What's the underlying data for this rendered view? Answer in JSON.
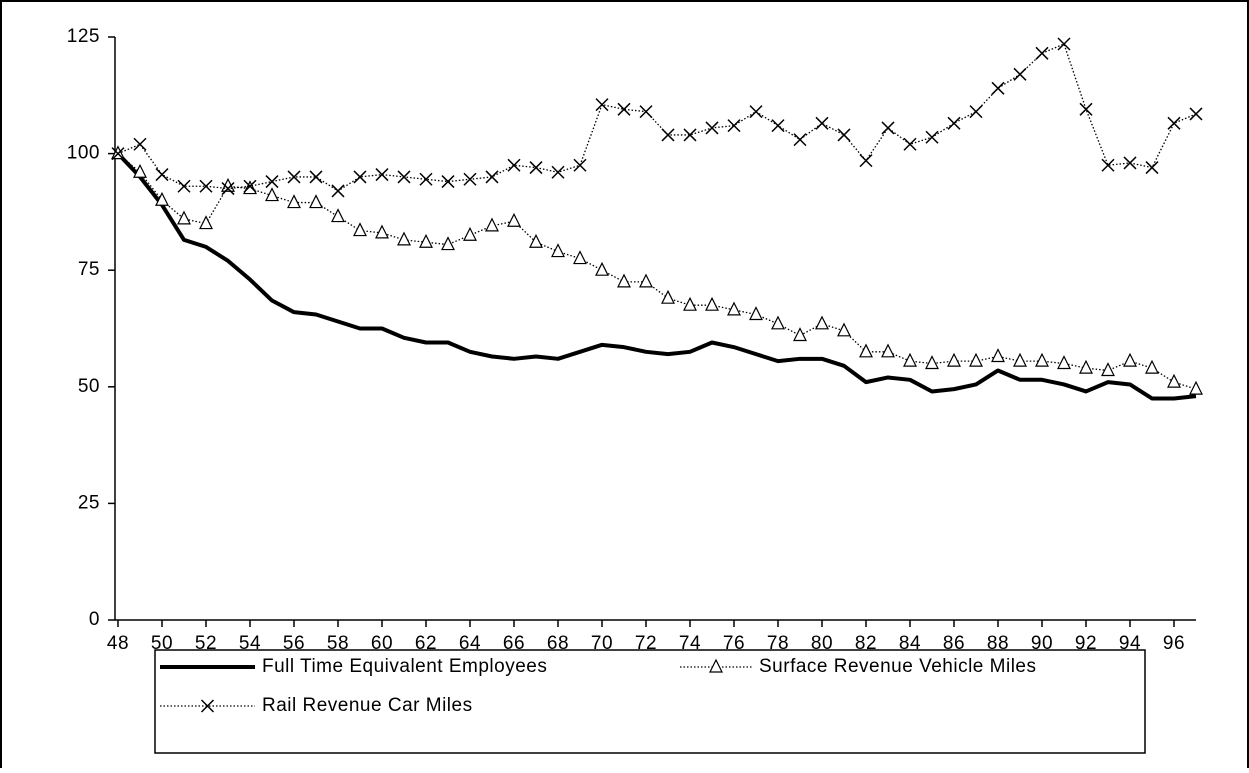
{
  "chart_data": {
    "type": "line",
    "x": [
      48,
      49,
      50,
      51,
      52,
      53,
      54,
      55,
      56,
      57,
      58,
      59,
      60,
      61,
      62,
      63,
      64,
      65,
      66,
      67,
      68,
      69,
      70,
      71,
      72,
      73,
      74,
      75,
      76,
      77,
      78,
      79,
      80,
      81,
      82,
      83,
      84,
      85,
      86,
      87,
      88,
      89,
      90,
      91,
      92,
      93,
      94,
      95,
      96,
      97
    ],
    "series": [
      {
        "name": "Full Time Equivalent Employees",
        "color": "#000000",
        "line_style": "solid",
        "marker": "none",
        "values": [
          100,
          95,
          89,
          81.5,
          80,
          77,
          73,
          68.5,
          66,
          65.5,
          64,
          62.5,
          62.5,
          60.5,
          59.5,
          59.5,
          57.5,
          56.5,
          56,
          56.5,
          56,
          57.5,
          59,
          58.5,
          57.5,
          57,
          57.5,
          59.5,
          58.5,
          57,
          55.5,
          56,
          56,
          54.5,
          51,
          52,
          51.5,
          49,
          49.5,
          50.5,
          53.5,
          51.5,
          51.5,
          50.5,
          49,
          51,
          50.5,
          47.5,
          47.5,
          48
        ]
      },
      {
        "name": "Surface Revenue Vehicle Miles",
        "color": "#000000",
        "line_style": "dotted",
        "marker": "triangle",
        "values": [
          100,
          96,
          90,
          86,
          85,
          93,
          92.5,
          91,
          89.5,
          89.5,
          86.5,
          83.5,
          83,
          81.5,
          81,
          80.5,
          82.5,
          84.5,
          85.5,
          81,
          79,
          77.5,
          75,
          72.5,
          72.5,
          69,
          67.5,
          67.5,
          66.5,
          65.5,
          63.5,
          61,
          63.5,
          62,
          57.5,
          57.5,
          55.5,
          55,
          55.5,
          55.5,
          56.5,
          55.5,
          55.5,
          55,
          54,
          53.5,
          55.5,
          54,
          51,
          49.5
        ]
      },
      {
        "name": "Rail Revenue Car Miles",
        "color": "#000000",
        "line_style": "dotted",
        "marker": "x",
        "values": [
          100,
          102,
          95.5,
          93,
          93,
          92.5,
          93,
          94,
          95,
          95,
          92,
          95,
          95.5,
          95,
          94.5,
          94,
          94.5,
          95,
          97.5,
          97,
          96,
          97.5,
          110.5,
          109.5,
          109,
          104,
          104,
          105.5,
          106,
          109,
          106,
          103,
          106.5,
          104,
          98.5,
          105.5,
          102,
          103.5,
          106.5,
          109,
          114,
          117,
          121.5,
          123.5,
          109.5,
          97.5,
          98,
          97,
          106.5,
          108.5
        ]
      }
    ],
    "xlim": [
      48,
      97
    ],
    "xticks": [
      48,
      50,
      52,
      54,
      56,
      58,
      60,
      62,
      64,
      66,
      68,
      70,
      72,
      74,
      76,
      78,
      80,
      82,
      84,
      86,
      88,
      90,
      92,
      94,
      96
    ],
    "ylim": [
      0,
      125
    ],
    "yticks": [
      0,
      25,
      50,
      75,
      100,
      125
    ],
    "grid": false,
    "legend": "bottom"
  }
}
